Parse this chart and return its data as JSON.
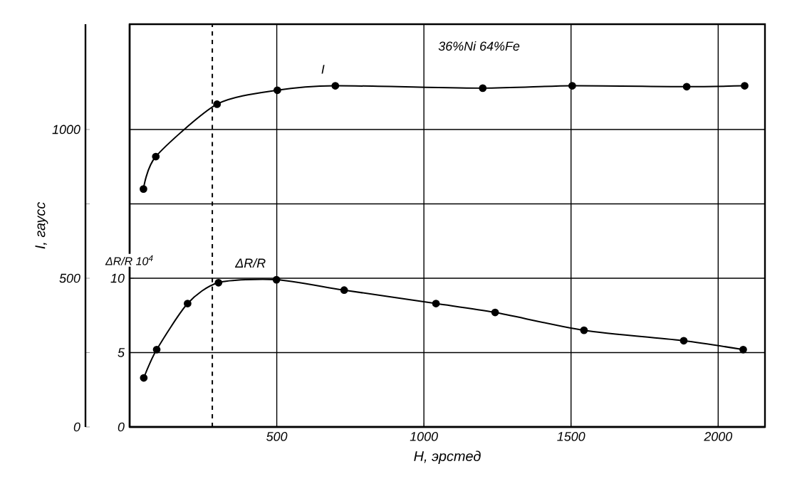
{
  "chart_data": {
    "type": "line",
    "xlabel": "H, эрстед",
    "ylabel": "I, гаусс",
    "y2label": "ΔR/R 10$^{4}$",
    "xlim": [
      0,
      2159
    ],
    "xticks": [
      500,
      1000,
      1500,
      2000
    ],
    "ylim": [
      0,
      1354
    ],
    "yticks": [
      0,
      {
        "value": 250,
        "label": null
      },
      500,
      {
        "value": 750,
        "label": null
      },
      1000
    ],
    "y2lim": [
      0,
      27.08
    ],
    "y2ticks": [
      0,
      5,
      10
    ],
    "grid": true,
    "marker": "circle",
    "series": [
      {
        "name": "I",
        "color": "#000000",
        "x": [
          47,
          89,
          297,
          502,
          699,
          1200,
          1504,
          1893,
          2090
        ],
        "values": [
          800,
          909,
          1085,
          1132,
          1147,
          1139,
          1147,
          1144,
          1147
        ]
      },
      {
        "name": "ΔR/R",
        "color": "#000000",
        "axis": "y2",
        "x": [
          48,
          92,
          197,
          302,
          499,
          729,
          1041,
          1242,
          1544,
          1883,
          2085
        ],
        "values": [
          3.3,
          5.2,
          8.3,
          9.7,
          9.9,
          9.2,
          8.3,
          7.7,
          6.5,
          5.8,
          5.2
        ]
      }
    ],
    "ref_lines": [
      {
        "axis": "x",
        "value": 281,
        "line_style": "dashed"
      }
    ],
    "annotations": [
      "36%Ni 64%Fe"
    ]
  }
}
